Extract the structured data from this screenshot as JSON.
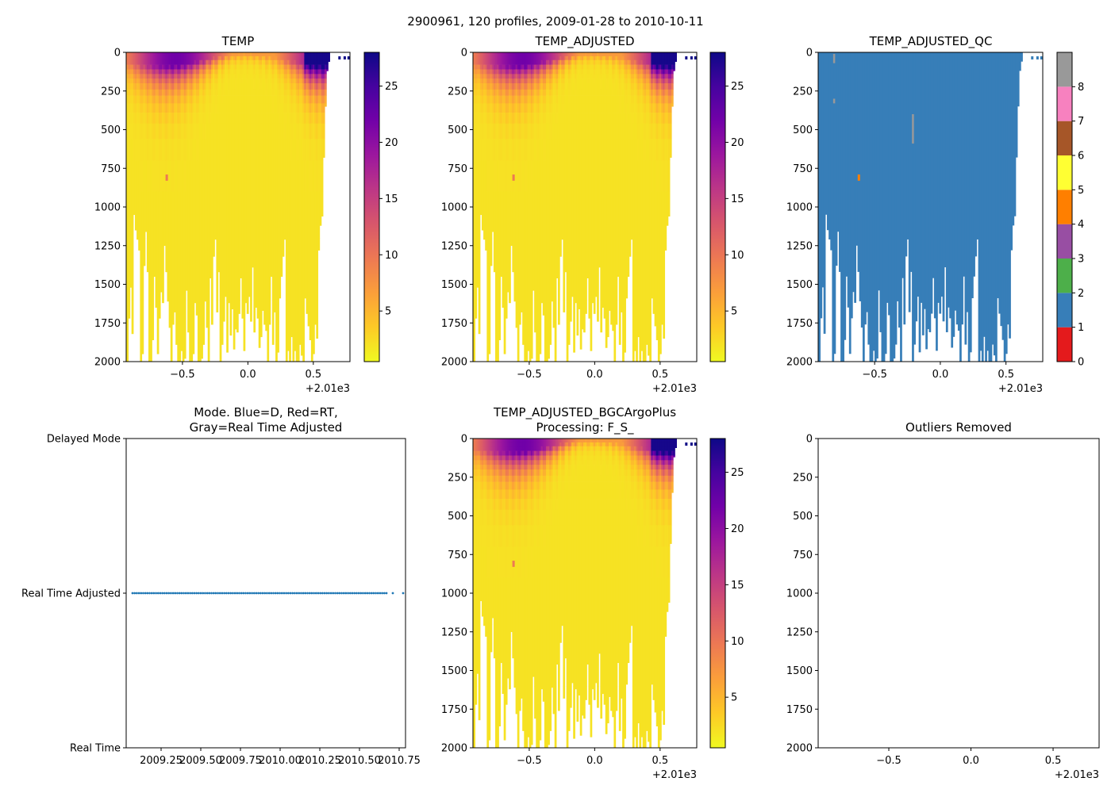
{
  "figure_title": "2900961, 120 profiles, 2009-01-28 to 2010-10-11",
  "offset_label": "+2.01e3",
  "colors": {
    "temp_ramp": [
      "#f0f921",
      "#fdca26",
      "#fb9f3a",
      "#ed7953",
      "#d8576b",
      "#bd3786",
      "#9c179e",
      "#7201a8",
      "#46039f",
      "#0d0887"
    ],
    "qc": [
      "#e41a1c",
      "#377eb8",
      "#4daf4a",
      "#984ea3",
      "#ff7f00",
      "#ffff33",
      "#a65628",
      "#f781bf",
      "#999999"
    ],
    "mode_points": "#1f77b4"
  },
  "chart_data": [
    {
      "id": "temp",
      "type": "heatmap",
      "title": "TEMP",
      "x_ticks": [
        "−0.5",
        "0.0",
        "0.5"
      ],
      "x_tick_values": [
        -0.5,
        0.0,
        0.5
      ],
      "xlim": [
        -0.93,
        0.78
      ],
      "y_ticks": [
        "0",
        "250",
        "500",
        "750",
        "1000",
        "1250",
        "1500",
        "1750",
        "2000"
      ],
      "y_tick_values": [
        0,
        250,
        500,
        750,
        1000,
        1250,
        1500,
        1750,
        2000
      ],
      "ylim": [
        2000,
        0
      ],
      "colorbar": {
        "ticks": [
          "5",
          "10",
          "15",
          "20",
          "25"
        ],
        "tick_values": [
          5,
          10,
          15,
          20,
          25
        ],
        "range": [
          0.5,
          28
        ]
      },
      "profile_x_range": [
        -0.92,
        0.62
      ],
      "profile_max_depth": [
        2000,
        1720,
        1520,
        1820,
        1050,
        1150,
        1210,
        1280,
        2000,
        1950,
        1380,
        1160,
        1420,
        2000,
        2000,
        1860,
        1450,
        1650,
        1950,
        1720,
        1550,
        1620,
        1250,
        1420,
        1610,
        1780,
        2000,
        1760,
        1680,
        1890,
        2000,
        2000,
        1930,
        2000,
        1980,
        1540,
        1810,
        2000,
        2000,
        1950,
        1620,
        1700,
        2000,
        2000,
        1980,
        1890,
        1610,
        1780,
        2000,
        1460,
        1760,
        1320,
        1210,
        1680,
        1420,
        2000,
        1890,
        1740,
        1580,
        1940,
        1620,
        1830,
        1660,
        1920,
        1790,
        1810,
        1690,
        1460,
        1720,
        1930,
        1620,
        1690,
        1580,
        1740,
        1390,
        1810,
        1650,
        1720,
        1910,
        1840,
        1670,
        1760,
        1800,
        2000,
        1760,
        1450,
        1890,
        1680,
        2000,
        1940,
        1590,
        1450,
        1320,
        1210,
        2000,
        1930,
        2000,
        1840,
        2000,
        1930,
        2000,
        2000,
        1890,
        1960,
        2000,
        1590,
        1690,
        1770,
        1860,
        2000,
        1950,
        1760,
        1850,
        1280,
        1120,
        1060,
        680,
        350,
        120,
        60
      ],
      "mixed_layer_warmth": "surface 27.5 in late profiles; deep water near 2",
      "outlier_depth": [
        790,
        830
      ],
      "outlier_x": -0.62
    },
    {
      "id": "temp_adjusted",
      "type": "heatmap",
      "title": "TEMP_ADJUSTED",
      "x_ticks": [
        "−0.5",
        "0.0",
        "0.5"
      ],
      "x_tick_values": [
        -0.5,
        0.0,
        0.5
      ],
      "xlim": [
        -0.93,
        0.78
      ],
      "y_ticks": [
        "0",
        "250",
        "500",
        "750",
        "1000",
        "1250",
        "1500",
        "1750",
        "2000"
      ],
      "y_tick_values": [
        0,
        250,
        500,
        750,
        1000,
        1250,
        1500,
        1750,
        2000
      ],
      "ylim": [
        2000,
        0
      ],
      "colorbar": {
        "ticks": [
          "5",
          "10",
          "15",
          "20",
          "25"
        ],
        "tick_values": [
          5,
          10,
          15,
          20,
          25
        ],
        "range": [
          0.5,
          28
        ]
      }
    },
    {
      "id": "temp_adjusted_qc",
      "type": "heatmap",
      "title": "TEMP_ADJUSTED_QC",
      "x_ticks": [
        "−0.5",
        "0.0",
        "0.5"
      ],
      "x_tick_values": [
        -0.5,
        0.0,
        0.5
      ],
      "xlim": [
        -0.93,
        0.78
      ],
      "y_ticks": [
        "0",
        "250",
        "500",
        "750",
        "1000",
        "1250",
        "1500",
        "1750",
        "2000"
      ],
      "y_tick_values": [
        0,
        250,
        500,
        750,
        1000,
        1250,
        1500,
        1750,
        2000
      ],
      "ylim": [
        2000,
        0
      ],
      "colorbar": {
        "ticks": [
          "0",
          "1",
          "2",
          "3",
          "4",
          "5",
          "6",
          "7",
          "8"
        ],
        "tick_values": [
          0,
          1,
          2,
          3,
          4,
          5,
          6,
          7,
          8
        ],
        "range": [
          0,
          9
        ]
      },
      "dominant_flag": 1,
      "gray_flag_marks": [
        {
          "x": -0.81,
          "depth": [
            10,
            70
          ]
        },
        {
          "x": -0.81,
          "depth": [
            300,
            330
          ]
        },
        {
          "x": -0.21,
          "depth": [
            400,
            590
          ]
        }
      ],
      "orange_flag_mark": {
        "x": -0.62,
        "depth": [
          790,
          830
        ]
      }
    },
    {
      "id": "mode",
      "type": "scatter",
      "title_lines": [
        "Mode. Blue=D, Red=RT,",
        "Gray=Real Time Adjusted"
      ],
      "x_ticks": [
        "2009.25",
        "2009.50",
        "2009.75",
        "2010.00",
        "2010.25",
        "2010.50",
        "2010.75"
      ],
      "x_tick_values": [
        2009.25,
        2009.5,
        2009.75,
        2010.0,
        2010.25,
        2010.5,
        2010.75
      ],
      "xlim": [
        2009.03,
        2010.79
      ],
      "y_ticks": [
        "Delayed Mode",
        "Real Time Adjusted",
        "Real Time"
      ],
      "y_tick_values": [
        2,
        1,
        0
      ],
      "ylim": [
        0,
        2
      ],
      "points_level": 1,
      "points_x_range": [
        2009.07,
        2010.67
      ],
      "points_count": 120,
      "extra_points_x": [
        2010.71,
        2010.775
      ]
    },
    {
      "id": "temp_adjusted_bgc",
      "type": "heatmap",
      "title_lines": [
        "TEMP_ADJUSTED_BGCArgoPlus",
        "Processing: F_S_"
      ],
      "x_ticks": [
        "−0.5",
        "0.0",
        "0.5"
      ],
      "x_tick_values": [
        -0.5,
        0.0,
        0.5
      ],
      "xlim": [
        -0.93,
        0.78
      ],
      "y_ticks": [
        "0",
        "250",
        "500",
        "750",
        "1000",
        "1250",
        "1500",
        "1750",
        "2000"
      ],
      "y_tick_values": [
        0,
        250,
        500,
        750,
        1000,
        1250,
        1500,
        1750,
        2000
      ],
      "ylim": [
        2000,
        0
      ],
      "colorbar": {
        "ticks": [
          "5",
          "10",
          "15",
          "20",
          "25"
        ],
        "tick_values": [
          5,
          10,
          15,
          20,
          25
        ],
        "range": [
          0.5,
          28
        ]
      }
    },
    {
      "id": "outliers",
      "type": "scatter",
      "title": "Outliers Removed",
      "x_ticks": [
        "−0.5",
        "0.0",
        "0.5"
      ],
      "x_tick_values": [
        -0.5,
        0.0,
        0.5
      ],
      "xlim": [
        -0.93,
        0.78
      ],
      "y_ticks": [
        "0",
        "250",
        "500",
        "750",
        "1000",
        "1250",
        "1500",
        "1750",
        "2000"
      ],
      "y_tick_values": [
        0,
        250,
        500,
        750,
        1000,
        1250,
        1500,
        1750,
        2000
      ],
      "ylim": [
        2000,
        0
      ]
    }
  ]
}
